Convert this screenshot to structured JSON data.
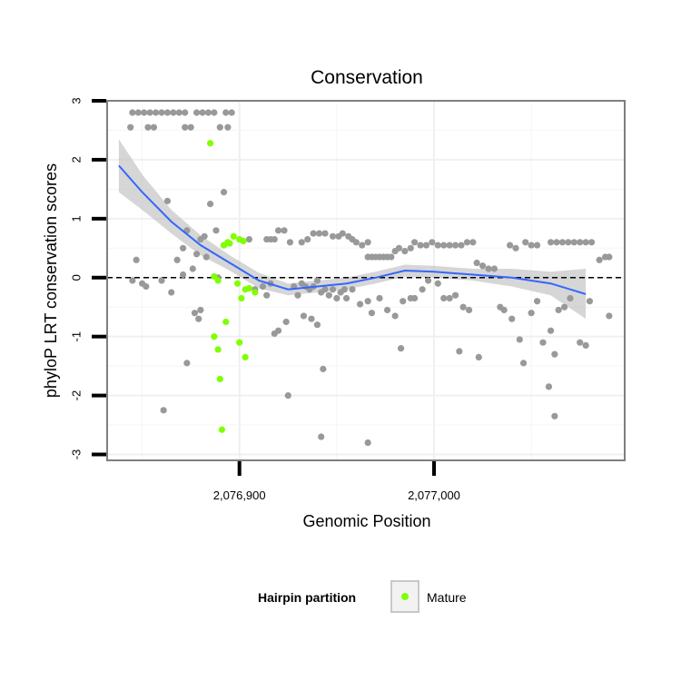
{
  "chart_data": {
    "type": "scatter",
    "title": "Conservation",
    "xlabel": "Genomic Position",
    "ylabel": "phyloP LRT conservation scores",
    "xlim": [
      2076832,
      2077098
    ],
    "ylim": [
      -3.1,
      3.0
    ],
    "x_ticks": [
      {
        "value": 2076900,
        "label": "2,076,900"
      },
      {
        "value": 2077000,
        "label": "2,077,000"
      }
    ],
    "y_ticks": [
      {
        "value": 3,
        "label": "3"
      },
      {
        "value": 2,
        "label": "2"
      },
      {
        "value": 1,
        "label": "1"
      },
      {
        "value": 0,
        "label": "0"
      },
      {
        "value": -1,
        "label": "-1"
      },
      {
        "value": -2,
        "label": "-2"
      },
      {
        "value": -3,
        "label": "-3"
      }
    ],
    "grid": true,
    "reference_line": {
      "y": 0,
      "style": "dashed"
    },
    "colors": {
      "other": "#999999",
      "mature": "#7FFF00",
      "smooth": "#3366FF",
      "band": "#bbbbbb"
    },
    "legend": {
      "title": "Hairpin partition",
      "position": "bottom",
      "entries": [
        "Mature"
      ]
    },
    "series": [
      {
        "name": "Other",
        "points": [
          [
            2076845,
            2.8
          ],
          [
            2076848,
            2.8
          ],
          [
            2076851,
            2.8
          ],
          [
            2076854,
            2.8
          ],
          [
            2076857,
            2.8
          ],
          [
            2076860,
            2.8
          ],
          [
            2076863,
            2.8
          ],
          [
            2076866,
            2.8
          ],
          [
            2076869,
            2.8
          ],
          [
            2076872,
            2.8
          ],
          [
            2076878,
            2.8
          ],
          [
            2076881,
            2.8
          ],
          [
            2076884,
            2.8
          ],
          [
            2076887,
            2.8
          ],
          [
            2076893,
            2.8
          ],
          [
            2076896,
            2.8
          ],
          [
            2076844,
            2.55
          ],
          [
            2076853,
            2.55
          ],
          [
            2076856,
            2.55
          ],
          [
            2076872,
            2.55
          ],
          [
            2076875,
            2.55
          ],
          [
            2076890,
            2.55
          ],
          [
            2076894,
            2.55
          ],
          [
            2076863,
            1.3
          ],
          [
            2076892,
            1.45
          ],
          [
            2076885,
            1.25
          ],
          [
            2076873,
            0.8
          ],
          [
            2076888,
            0.8
          ],
          [
            2076880,
            0.65
          ],
          [
            2076882,
            0.7
          ],
          [
            2076871,
            0.5
          ],
          [
            2076868,
            0.3
          ],
          [
            2076847,
            0.3
          ],
          [
            2076892,
            0.55
          ],
          [
            2076905,
            0.65
          ],
          [
            2076878,
            0.4
          ],
          [
            2076883,
            0.35
          ],
          [
            2076845,
            -0.05
          ],
          [
            2076850,
            -0.1
          ],
          [
            2076852,
            -0.15
          ],
          [
            2076860,
            -0.05
          ],
          [
            2076865,
            -0.25
          ],
          [
            2076871,
            0.05
          ],
          [
            2076876,
            0.15
          ],
          [
            2076877,
            -0.6
          ],
          [
            2076880,
            -0.55
          ],
          [
            2076879,
            -0.7
          ],
          [
            2076873,
            -1.45
          ],
          [
            2076861,
            -2.25
          ],
          [
            2076889,
            0.0
          ],
          [
            2076914,
            0.65
          ],
          [
            2076916,
            0.65
          ],
          [
            2076918,
            0.65
          ],
          [
            2076920,
            0.8
          ],
          [
            2076923,
            0.8
          ],
          [
            2076926,
            0.6
          ],
          [
            2076932,
            0.6
          ],
          [
            2076935,
            0.65
          ],
          [
            2076938,
            0.75
          ],
          [
            2076941,
            0.75
          ],
          [
            2076944,
            0.75
          ],
          [
            2076908,
            -0.2
          ],
          [
            2076912,
            -0.15
          ],
          [
            2076914,
            -0.3
          ],
          [
            2076916,
            -0.1
          ],
          [
            2076918,
            -0.95
          ],
          [
            2076920,
            -0.9
          ],
          [
            2076924,
            -0.75
          ],
          [
            2076928,
            -0.15
          ],
          [
            2076930,
            -0.3
          ],
          [
            2076932,
            -0.1
          ],
          [
            2076934,
            -0.15
          ],
          [
            2076936,
            -0.2
          ],
          [
            2076938,
            -0.15
          ],
          [
            2076940,
            -0.05
          ],
          [
            2076942,
            -0.25
          ],
          [
            2076944,
            -0.2
          ],
          [
            2076946,
            -0.3
          ],
          [
            2076948,
            -0.2
          ],
          [
            2076950,
            -0.35
          ],
          [
            2076952,
            -0.25
          ],
          [
            2076954,
            -0.2
          ],
          [
            2076937,
            -0.7
          ],
          [
            2076933,
            -0.65
          ],
          [
            2076940,
            -0.8
          ],
          [
            2076925,
            -2.0
          ],
          [
            2076943,
            -1.55
          ],
          [
            2076942,
            -2.7
          ],
          [
            2076948,
            0.7
          ],
          [
            2076951,
            0.7
          ],
          [
            2076953,
            0.75
          ],
          [
            2076956,
            0.7
          ],
          [
            2076958,
            0.65
          ],
          [
            2076960,
            0.6
          ],
          [
            2076963,
            0.55
          ],
          [
            2076966,
            0.6
          ],
          [
            2076962,
            -0.45
          ],
          [
            2076966,
            -0.4
          ],
          [
            2076968,
            -0.6
          ],
          [
            2076972,
            -0.35
          ],
          [
            2076976,
            -0.55
          ],
          [
            2076958,
            -0.2
          ],
          [
            2076955,
            -0.35
          ],
          [
            2076966,
            -2.8
          ],
          [
            2076966,
            0.35
          ],
          [
            2076968,
            0.35
          ],
          [
            2076970,
            0.35
          ],
          [
            2076972,
            0.35
          ],
          [
            2076974,
            0.35
          ],
          [
            2076976,
            0.35
          ],
          [
            2076978,
            0.35
          ],
          [
            2076980,
            0.45
          ],
          [
            2076982,
            0.5
          ],
          [
            2076985,
            0.45
          ],
          [
            2076988,
            0.5
          ],
          [
            2076990,
            0.6
          ],
          [
            2076993,
            0.55
          ],
          [
            2076996,
            0.55
          ],
          [
            2076999,
            0.6
          ],
          [
            2077002,
            0.55
          ],
          [
            2077005,
            0.55
          ],
          [
            2077008,
            0.55
          ],
          [
            2077011,
            0.55
          ],
          [
            2077014,
            0.55
          ],
          [
            2077017,
            0.6
          ],
          [
            2077020,
            0.6
          ],
          [
            2076980,
            -0.65
          ],
          [
            2076984,
            -0.4
          ],
          [
            2076988,
            -0.35
          ],
          [
            2076990,
            -0.35
          ],
          [
            2076994,
            -0.2
          ],
          [
            2076997,
            -0.05
          ],
          [
            2077002,
            -0.1
          ],
          [
            2077005,
            -0.35
          ],
          [
            2077008,
            -0.35
          ],
          [
            2077011,
            -0.3
          ],
          [
            2077015,
            -0.5
          ],
          [
            2077018,
            -0.55
          ],
          [
            2077022,
            0.25
          ],
          [
            2077025,
            0.2
          ],
          [
            2077028,
            0.15
          ],
          [
            2077031,
            0.15
          ],
          [
            2076983,
            -1.2
          ],
          [
            2077013,
            -1.25
          ],
          [
            2077023,
            -1.35
          ],
          [
            2077039,
            0.55
          ],
          [
            2077042,
            0.5
          ],
          [
            2077047,
            0.6
          ],
          [
            2077050,
            0.55
          ],
          [
            2077053,
            0.55
          ],
          [
            2077060,
            0.6
          ],
          [
            2077063,
            0.6
          ],
          [
            2077066,
            0.6
          ],
          [
            2077069,
            0.6
          ],
          [
            2077072,
            0.6
          ],
          [
            2077075,
            0.6
          ],
          [
            2077078,
            0.6
          ],
          [
            2077081,
            0.6
          ],
          [
            2077085,
            0.3
          ],
          [
            2077088,
            0.35
          ],
          [
            2077090,
            0.35
          ],
          [
            2077034,
            -0.5
          ],
          [
            2077036,
            -0.55
          ],
          [
            2077040,
            -0.7
          ],
          [
            2077044,
            -1.05
          ],
          [
            2077046,
            -1.45
          ],
          [
            2077050,
            -0.6
          ],
          [
            2077053,
            -0.4
          ],
          [
            2077056,
            -1.1
          ],
          [
            2077060,
            -0.9
          ],
          [
            2077064,
            -0.55
          ],
          [
            2077067,
            -0.5
          ],
          [
            2077070,
            -0.35
          ],
          [
            2077075,
            -1.1
          ],
          [
            2077078,
            -1.15
          ],
          [
            2077090,
            -0.65
          ],
          [
            2077059,
            -1.85
          ],
          [
            2077062,
            -2.35
          ],
          [
            2077062,
            -1.3
          ],
          [
            2077080,
            -0.4
          ]
        ]
      },
      {
        "name": "Mature",
        "points": [
          [
            2076885,
            2.28
          ],
          [
            2076892,
            0.55
          ],
          [
            2076894,
            0.6
          ],
          [
            2076895,
            0.58
          ],
          [
            2076897,
            0.7
          ],
          [
            2076900,
            0.65
          ],
          [
            2076902,
            0.62
          ],
          [
            2076887,
            0.02
          ],
          [
            2076889,
            -0.05
          ],
          [
            2076899,
            -0.1
          ],
          [
            2076903,
            -0.2
          ],
          [
            2076905,
            -0.18
          ],
          [
            2076908,
            -0.25
          ],
          [
            2076901,
            -0.35
          ],
          [
            2076893,
            -0.75
          ],
          [
            2076887,
            -1.0
          ],
          [
            2076889,
            -1.22
          ],
          [
            2076900,
            -1.1
          ],
          [
            2076903,
            -1.35
          ],
          [
            2076890,
            -1.72
          ],
          [
            2076891,
            -2.58
          ]
        ]
      }
    ],
    "smooth_fit": {
      "x": [
        2076838,
        2076850,
        2076865,
        2076880,
        2076895,
        2076910,
        2076925,
        2076940,
        2076955,
        2076970,
        2076985,
        2077000,
        2077020,
        2077040,
        2077060,
        2077078
      ],
      "y": [
        1.9,
        1.45,
        0.95,
        0.55,
        0.25,
        -0.05,
        -0.2,
        -0.15,
        -0.1,
        0.0,
        0.12,
        0.1,
        0.05,
        0.0,
        -0.1,
        -0.28
      ],
      "lower": [
        1.45,
        1.15,
        0.75,
        0.38,
        0.12,
        -0.18,
        -0.3,
        -0.25,
        -0.2,
        -0.1,
        0.02,
        0.0,
        -0.05,
        -0.15,
        -0.3,
        -0.7
      ],
      "upper": [
        2.35,
        1.75,
        1.15,
        0.72,
        0.38,
        0.08,
        -0.1,
        -0.05,
        0.0,
        0.1,
        0.22,
        0.2,
        0.15,
        0.15,
        0.1,
        0.15
      ]
    }
  }
}
